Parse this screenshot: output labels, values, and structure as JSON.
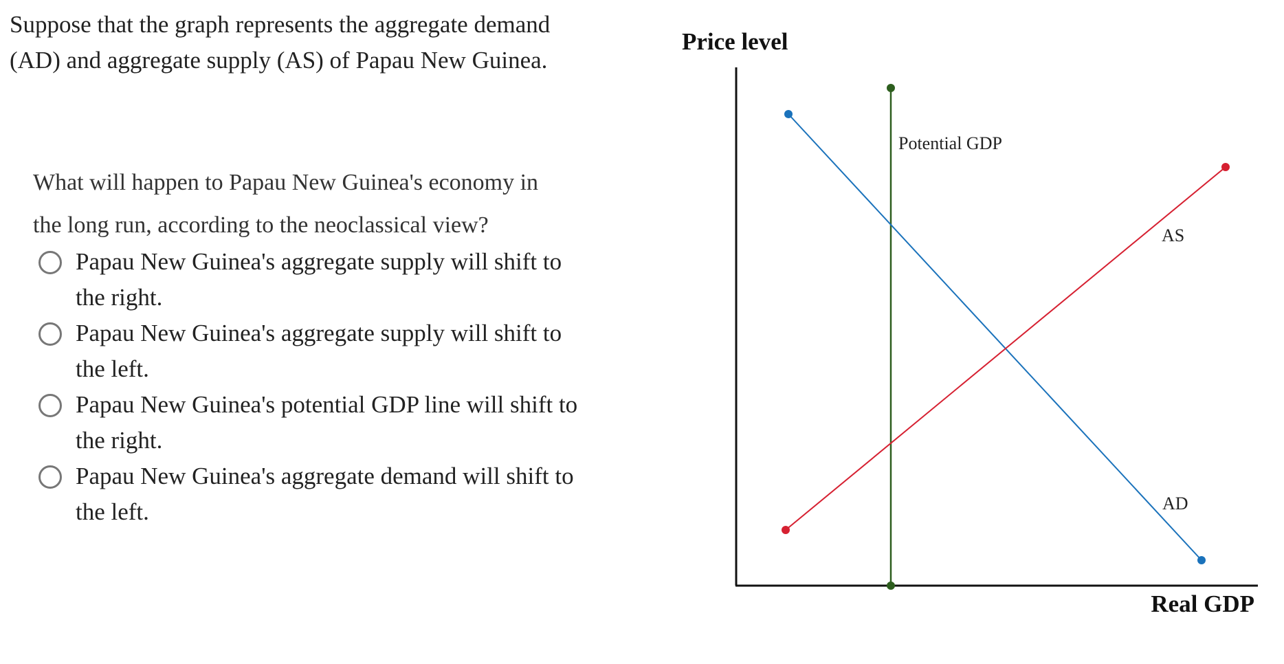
{
  "intro": {
    "line1": "Suppose that the graph represents the aggregate demand",
    "line2": "(AD) and aggregate supply (AS) of Papau New Guinea."
  },
  "question": {
    "line1": "What will happen to Papau New Guinea's economy in",
    "line2": "the long run, according to the neoclassical view?"
  },
  "options": [
    {
      "line1": "Papau New Guinea's aggregate supply will shift to",
      "line2": "the right."
    },
    {
      "line1": "Papau New Guinea's aggregate supply will shift to",
      "line2": "the left."
    },
    {
      "line1": "Papau New Guinea's potential GDP line will shift to",
      "line2": "the right."
    },
    {
      "line1": "Papau New Guinea's aggregate demand will shift to",
      "line2": "the left."
    }
  ],
  "graph": {
    "y_label": "Price level",
    "x_label": "Real GDP",
    "potential_label": "Potential GDP",
    "as_label": "AS",
    "ad_label": "AD",
    "colors": {
      "potential": "#2d5e1e",
      "as": "#d62031",
      "ad": "#1a72bb",
      "axis": "#111111"
    }
  }
}
